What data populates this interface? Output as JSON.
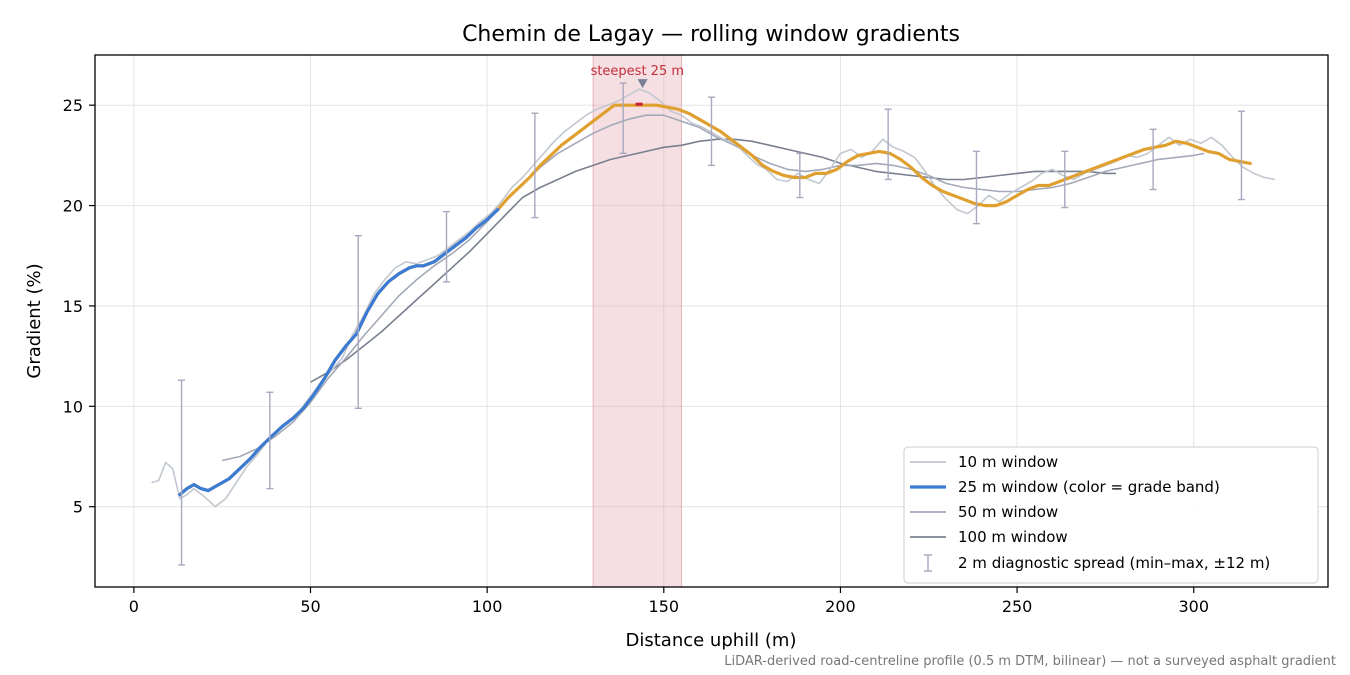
{
  "chart_data": {
    "type": "line",
    "title": "Chemin de Lagay — rolling window gradients",
    "xlabel": "Distance uphill (m)",
    "ylabel": "Gradient (%)",
    "xlim": [
      -11,
      338
    ],
    "ylim": [
      1,
      27.5
    ],
    "xticks": [
      0,
      50,
      100,
      150,
      200,
      250,
      300
    ],
    "yticks": [
      5,
      10,
      15,
      20,
      25
    ],
    "grid": true,
    "legend_position": "lower-right",
    "footnote": "LiDAR-derived road-centreline profile (0.5 m DTM, bilinear) — not a surveyed asphalt gradient",
    "highlight": {
      "x_range": [
        130,
        155
      ],
      "color": "#e8aab4",
      "label": "steepest 25 m",
      "peak_x": 144,
      "peak_y": 26.1
    },
    "series": [
      {
        "name": "10 m window",
        "color": "#c2c8d0",
        "x": [
          5,
          7,
          9,
          11,
          13,
          15,
          17,
          20,
          23,
          26,
          29,
          32,
          35,
          38,
          41,
          44,
          47,
          50,
          53,
          56,
          59,
          62,
          65,
          68,
          71,
          74,
          77,
          80,
          83,
          86,
          89,
          92,
          95,
          98,
          101,
          104,
          107,
          110,
          113,
          116,
          119,
          122,
          125,
          128,
          131,
          134,
          137,
          140,
          143,
          146,
          149,
          152,
          155,
          158,
          161,
          164,
          167,
          170,
          173,
          176,
          179,
          182,
          185,
          188,
          191,
          194,
          197,
          200,
          203,
          206,
          209,
          212,
          215,
          218,
          221,
          224,
          227,
          230,
          233,
          236,
          239,
          242,
          245,
          248,
          251,
          254,
          257,
          260,
          263,
          266,
          269,
          272,
          275,
          278,
          281,
          284,
          287,
          290,
          293,
          296,
          299,
          302,
          305,
          308,
          311,
          314,
          317,
          320,
          323
        ],
        "y": [
          6.2,
          6.3,
          7.2,
          6.9,
          5.4,
          5.6,
          5.9,
          5.5,
          5.0,
          5.4,
          6.2,
          7.0,
          7.6,
          8.3,
          8.8,
          9.2,
          9.8,
          10.5,
          11.2,
          11.8,
          12.4,
          13.6,
          14.5,
          15.6,
          16.3,
          16.9,
          17.2,
          17.1,
          17.3,
          17.5,
          17.9,
          18.3,
          18.7,
          19.2,
          19.6,
          20.2,
          20.9,
          21.4,
          22.0,
          22.6,
          23.2,
          23.7,
          24.1,
          24.5,
          24.8,
          25.0,
          25.2,
          25.5,
          25.8,
          25.6,
          25.2,
          24.7,
          24.5,
          24.1,
          23.9,
          23.6,
          23.3,
          23.1,
          22.6,
          22.1,
          21.8,
          21.3,
          21.2,
          21.6,
          21.3,
          21.1,
          21.8,
          22.6,
          22.8,
          22.4,
          22.7,
          23.3,
          22.9,
          22.7,
          22.4,
          21.7,
          20.9,
          20.3,
          19.8,
          19.6,
          20.0,
          20.5,
          20.2,
          20.6,
          20.9,
          21.2,
          21.6,
          21.8,
          21.5,
          21.3,
          21.6,
          21.8,
          22.0,
          22.2,
          22.5,
          22.4,
          22.6,
          23.0,
          23.4,
          23.0,
          23.3,
          23.1,
          23.4,
          23.0,
          22.4,
          21.9,
          21.6,
          21.4,
          21.3
        ]
      },
      {
        "name": "25 m window (color = grade band)",
        "color": "#e0a030",
        "x": [
          13,
          15,
          17,
          19,
          21,
          24,
          27,
          30,
          33,
          36,
          39,
          42,
          45,
          48,
          51,
          54,
          57,
          60,
          63,
          66,
          69,
          72,
          75,
          78,
          80,
          82,
          85,
          88,
          91,
          94,
          97,
          100,
          103,
          106,
          109,
          112,
          115,
          118,
          121,
          124,
          127,
          130,
          133,
          136,
          139,
          142,
          145,
          148,
          151,
          154,
          157,
          160,
          163,
          166,
          169,
          172,
          175,
          178,
          181,
          184,
          187,
          190,
          193,
          196,
          199,
          202,
          205,
          208,
          211,
          214,
          217,
          220,
          223,
          226,
          229,
          232,
          235,
          238,
          241,
          244,
          247,
          250,
          253,
          256,
          259,
          262,
          265,
          268,
          271,
          274,
          277,
          280,
          283,
          286,
          289,
          292,
          295,
          298,
          301,
          304,
          307,
          310,
          313,
          316
        ],
        "y": [
          5.6,
          5.9,
          6.1,
          5.9,
          5.8,
          6.1,
          6.4,
          6.9,
          7.4,
          8.0,
          8.5,
          9.0,
          9.4,
          9.9,
          10.6,
          11.4,
          12.3,
          13.0,
          13.6,
          14.7,
          15.6,
          16.2,
          16.6,
          16.9,
          17.0,
          17.0,
          17.2,
          17.6,
          18.0,
          18.4,
          18.9,
          19.3,
          19.8,
          20.4,
          20.9,
          21.4,
          22.0,
          22.5,
          23.0,
          23.4,
          23.8,
          24.2,
          24.6,
          25.0,
          25.0,
          25.0,
          25.0,
          25.0,
          24.9,
          24.8,
          24.6,
          24.3,
          24.0,
          23.7,
          23.3,
          22.9,
          22.5,
          22.0,
          21.7,
          21.5,
          21.4,
          21.4,
          21.6,
          21.6,
          21.8,
          22.2,
          22.5,
          22.6,
          22.7,
          22.6,
          22.3,
          21.9,
          21.4,
          21.0,
          20.7,
          20.5,
          20.3,
          20.1,
          20.0,
          20.0,
          20.2,
          20.5,
          20.8,
          21.0,
          21.0,
          21.2,
          21.4,
          21.6,
          21.8,
          22.0,
          22.2,
          22.4,
          22.6,
          22.8,
          22.9,
          23.0,
          23.2,
          23.1,
          22.9,
          22.7,
          22.6,
          22.3,
          22.2,
          22.1
        ]
      },
      {
        "name": "50 m window",
        "color": "#a3a9b8",
        "x": [
          25,
          30,
          35,
          40,
          45,
          50,
          55,
          60,
          65,
          70,
          75,
          80,
          85,
          90,
          95,
          100,
          105,
          110,
          115,
          120,
          125,
          130,
          135,
          140,
          145,
          150,
          155,
          160,
          165,
          170,
          175,
          180,
          185,
          190,
          195,
          200,
          205,
          210,
          215,
          220,
          225,
          230,
          235,
          240,
          245,
          250,
          255,
          260,
          265,
          270,
          275,
          280,
          285,
          290,
          295,
          300,
          303
        ],
        "y": [
          7.3,
          7.5,
          7.9,
          8.5,
          9.2,
          10.2,
          11.4,
          12.4,
          13.5,
          14.5,
          15.5,
          16.3,
          17.0,
          17.6,
          18.3,
          19.2,
          20.2,
          21.1,
          21.9,
          22.6,
          23.1,
          23.6,
          24.0,
          24.3,
          24.5,
          24.5,
          24.2,
          23.9,
          23.4,
          23.0,
          22.5,
          22.1,
          21.8,
          21.7,
          21.8,
          22.0,
          22.0,
          22.1,
          22.0,
          21.8,
          21.5,
          21.1,
          20.9,
          20.8,
          20.7,
          20.7,
          20.8,
          20.9,
          21.1,
          21.4,
          21.7,
          21.9,
          22.1,
          22.3,
          22.4,
          22.5,
          22.6
        ]
      },
      {
        "name": "100 m window",
        "color": "#7a8090",
        "x": [
          50,
          55,
          60,
          65,
          70,
          75,
          80,
          85,
          90,
          95,
          100,
          105,
          110,
          115,
          120,
          125,
          130,
          135,
          140,
          145,
          150,
          155,
          160,
          165,
          170,
          175,
          180,
          185,
          190,
          195,
          200,
          205,
          210,
          215,
          220,
          225,
          230,
          235,
          240,
          245,
          250,
          255,
          260,
          265,
          270,
          275,
          278
        ],
        "y": [
          11.2,
          11.7,
          12.3,
          13.0,
          13.7,
          14.5,
          15.3,
          16.1,
          16.9,
          17.7,
          18.6,
          19.5,
          20.4,
          20.9,
          21.3,
          21.7,
          22.0,
          22.3,
          22.5,
          22.7,
          22.9,
          23.0,
          23.2,
          23.3,
          23.3,
          23.2,
          23.0,
          22.8,
          22.6,
          22.4,
          22.1,
          21.9,
          21.7,
          21.6,
          21.5,
          21.4,
          21.3,
          21.3,
          21.4,
          21.5,
          21.6,
          21.7,
          21.7,
          21.7,
          21.7,
          21.6,
          21.6
        ]
      },
      {
        "name": "2 m diagnostic spread (min–max, ±12 m)",
        "color": "#a8a8c0",
        "x": [
          13.5,
          38.5,
          63.5,
          88.5,
          113.5,
          138.5,
          163.5,
          188.5,
          213.5,
          238.5,
          263.5,
          288.5,
          313.5
        ],
        "low": [
          2.1,
          5.9,
          9.9,
          16.2,
          19.4,
          22.6,
          22.0,
          20.4,
          21.3,
          19.1,
          19.9,
          20.8,
          20.3
        ],
        "high": [
          11.3,
          10.7,
          18.5,
          19.7,
          24.6,
          26.1,
          25.4,
          22.6,
          24.8,
          22.7,
          22.7,
          23.8,
          24.7
        ]
      }
    ]
  }
}
